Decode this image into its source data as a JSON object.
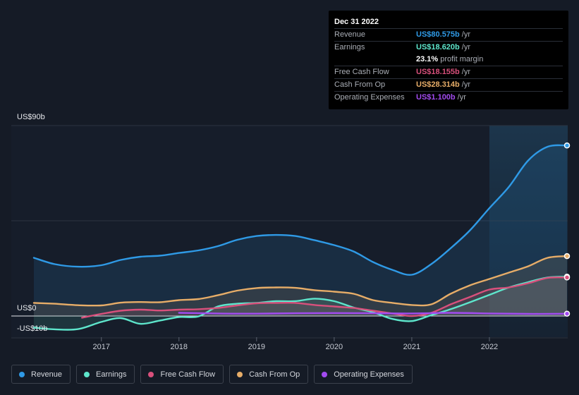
{
  "tooltip": {
    "date": "Dec 31 2022",
    "rows": [
      {
        "label": "Revenue",
        "value": "US$80.575b",
        "unit": "/yr",
        "color": "#2f9ae6"
      },
      {
        "label": "Earnings",
        "value": "US$18.620b",
        "unit": "/yr",
        "color": "#5ee6cc"
      },
      {
        "label": "",
        "value": "23.1%",
        "unit": "profit margin",
        "color": "#ffffff"
      },
      {
        "label": "Free Cash Flow",
        "value": "US$18.155b",
        "unit": "/yr",
        "color": "#d9507c"
      },
      {
        "label": "Cash From Op",
        "value": "US$28.314b",
        "unit": "/yr",
        "color": "#e7ad68"
      },
      {
        "label": "Operating Expenses",
        "value": "US$1.100b",
        "unit": "/yr",
        "color": "#a24bf0"
      }
    ]
  },
  "chart_data": {
    "type": "line",
    "y_axis_labels": [
      "US$90b",
      "US$0",
      "-US$10b"
    ],
    "ylim": [
      -10,
      90
    ],
    "x_ticks": [
      "2017",
      "2018",
      "2019",
      "2020",
      "2021",
      "2022"
    ],
    "x_range": [
      2016.13,
      2023.0
    ],
    "highlight_from": 2022.0,
    "series": [
      {
        "name": "Revenue",
        "color": "#2f9ae6",
        "fill": true,
        "points": [
          [
            2016.13,
            27.5
          ],
          [
            2016.4,
            24.5
          ],
          [
            2016.7,
            23.3
          ],
          [
            2017.0,
            24
          ],
          [
            2017.25,
            26.5
          ],
          [
            2017.5,
            28
          ],
          [
            2017.75,
            28.5
          ],
          [
            2018.0,
            29.8
          ],
          [
            2018.25,
            31
          ],
          [
            2018.5,
            33
          ],
          [
            2018.75,
            36
          ],
          [
            2019.0,
            37.8
          ],
          [
            2019.25,
            38.3
          ],
          [
            2019.5,
            37.8
          ],
          [
            2019.75,
            35.8
          ],
          [
            2020.0,
            33.5
          ],
          [
            2020.25,
            30.5
          ],
          [
            2020.5,
            25.5
          ],
          [
            2020.75,
            21.8
          ],
          [
            2021.0,
            19.5
          ],
          [
            2021.25,
            24.5
          ],
          [
            2021.5,
            32
          ],
          [
            2021.75,
            40.5
          ],
          [
            2022.0,
            51
          ],
          [
            2022.25,
            61
          ],
          [
            2022.5,
            73.5
          ],
          [
            2022.75,
            80
          ],
          [
            2023.0,
            80.6
          ]
        ]
      },
      {
        "name": "Earnings",
        "color": "#5ee6cc",
        "fill": true,
        "points": [
          [
            2016.13,
            -5.5
          ],
          [
            2016.4,
            -6.3
          ],
          [
            2016.7,
            -6.2
          ],
          [
            2017.0,
            -2.8
          ],
          [
            2017.25,
            -1
          ],
          [
            2017.5,
            -3.7
          ],
          [
            2017.75,
            -2.2
          ],
          [
            2018.0,
            -0.5
          ],
          [
            2018.25,
            -0.2
          ],
          [
            2018.5,
            4.5
          ],
          [
            2018.75,
            5.8
          ],
          [
            2019.0,
            6.2
          ],
          [
            2019.25,
            7
          ],
          [
            2019.5,
            7
          ],
          [
            2019.75,
            8.2
          ],
          [
            2020.0,
            7
          ],
          [
            2020.25,
            4
          ],
          [
            2020.5,
            1.8
          ],
          [
            2020.75,
            -1.4
          ],
          [
            2021.0,
            -2.4
          ],
          [
            2021.25,
            0.4
          ],
          [
            2021.5,
            3.2
          ],
          [
            2021.75,
            6.5
          ],
          [
            2022.0,
            10
          ],
          [
            2022.25,
            13.5
          ],
          [
            2022.5,
            16
          ],
          [
            2022.75,
            18.2
          ],
          [
            2023.0,
            18.6
          ]
        ]
      },
      {
        "name": "Free Cash Flow",
        "color": "#d9507c",
        "fill": true,
        "points": [
          [
            2016.75,
            -0.8
          ],
          [
            2017.0,
            1
          ],
          [
            2017.25,
            2.5
          ],
          [
            2017.5,
            3
          ],
          [
            2017.75,
            2.6
          ],
          [
            2018.0,
            3
          ],
          [
            2018.25,
            3.2
          ],
          [
            2018.5,
            3.8
          ],
          [
            2018.75,
            5
          ],
          [
            2019.0,
            6
          ],
          [
            2019.25,
            6.2
          ],
          [
            2019.5,
            6.2
          ],
          [
            2019.75,
            5.2
          ],
          [
            2020.0,
            4.5
          ],
          [
            2020.25,
            3.8
          ],
          [
            2020.5,
            2.5
          ],
          [
            2020.75,
            1.2
          ],
          [
            2021.0,
            0
          ],
          [
            2021.25,
            1.5
          ],
          [
            2021.5,
            5.5
          ],
          [
            2021.75,
            9
          ],
          [
            2022.0,
            12.5
          ],
          [
            2022.25,
            13.5
          ],
          [
            2022.5,
            15.5
          ],
          [
            2022.75,
            18
          ],
          [
            2023.0,
            18.2
          ]
        ]
      },
      {
        "name": "Cash From Op",
        "color": "#e7ad68",
        "fill": true,
        "points": [
          [
            2016.13,
            6.2
          ],
          [
            2016.4,
            5.8
          ],
          [
            2016.7,
            5.1
          ],
          [
            2017.0,
            5
          ],
          [
            2017.25,
            6.3
          ],
          [
            2017.5,
            6.6
          ],
          [
            2017.75,
            6.5
          ],
          [
            2018.0,
            7.5
          ],
          [
            2018.25,
            8
          ],
          [
            2018.5,
            9.8
          ],
          [
            2018.75,
            12
          ],
          [
            2019.0,
            13.2
          ],
          [
            2019.25,
            13.5
          ],
          [
            2019.5,
            13.3
          ],
          [
            2019.75,
            12.2
          ],
          [
            2020.0,
            11.5
          ],
          [
            2020.25,
            10.5
          ],
          [
            2020.5,
            7.5
          ],
          [
            2020.75,
            6.2
          ],
          [
            2021.0,
            5.2
          ],
          [
            2021.25,
            5.5
          ],
          [
            2021.5,
            10.5
          ],
          [
            2021.75,
            14.5
          ],
          [
            2022.0,
            17.5
          ],
          [
            2022.25,
            20.5
          ],
          [
            2022.5,
            23.5
          ],
          [
            2022.75,
            27.5
          ],
          [
            2023.0,
            28.3
          ]
        ]
      },
      {
        "name": "Operating Expenses",
        "color": "#a24bf0",
        "fill": false,
        "points": [
          [
            2018.0,
            1.5
          ],
          [
            2018.5,
            1.2
          ],
          [
            2019.0,
            1.1
          ],
          [
            2019.5,
            1.3
          ],
          [
            2020.0,
            1.4
          ],
          [
            2020.5,
            1.3
          ],
          [
            2021.0,
            1.2
          ],
          [
            2021.5,
            1.5
          ],
          [
            2022.0,
            1.2
          ],
          [
            2022.5,
            1.0
          ],
          [
            2023.0,
            1.1
          ]
        ]
      }
    ]
  }
}
